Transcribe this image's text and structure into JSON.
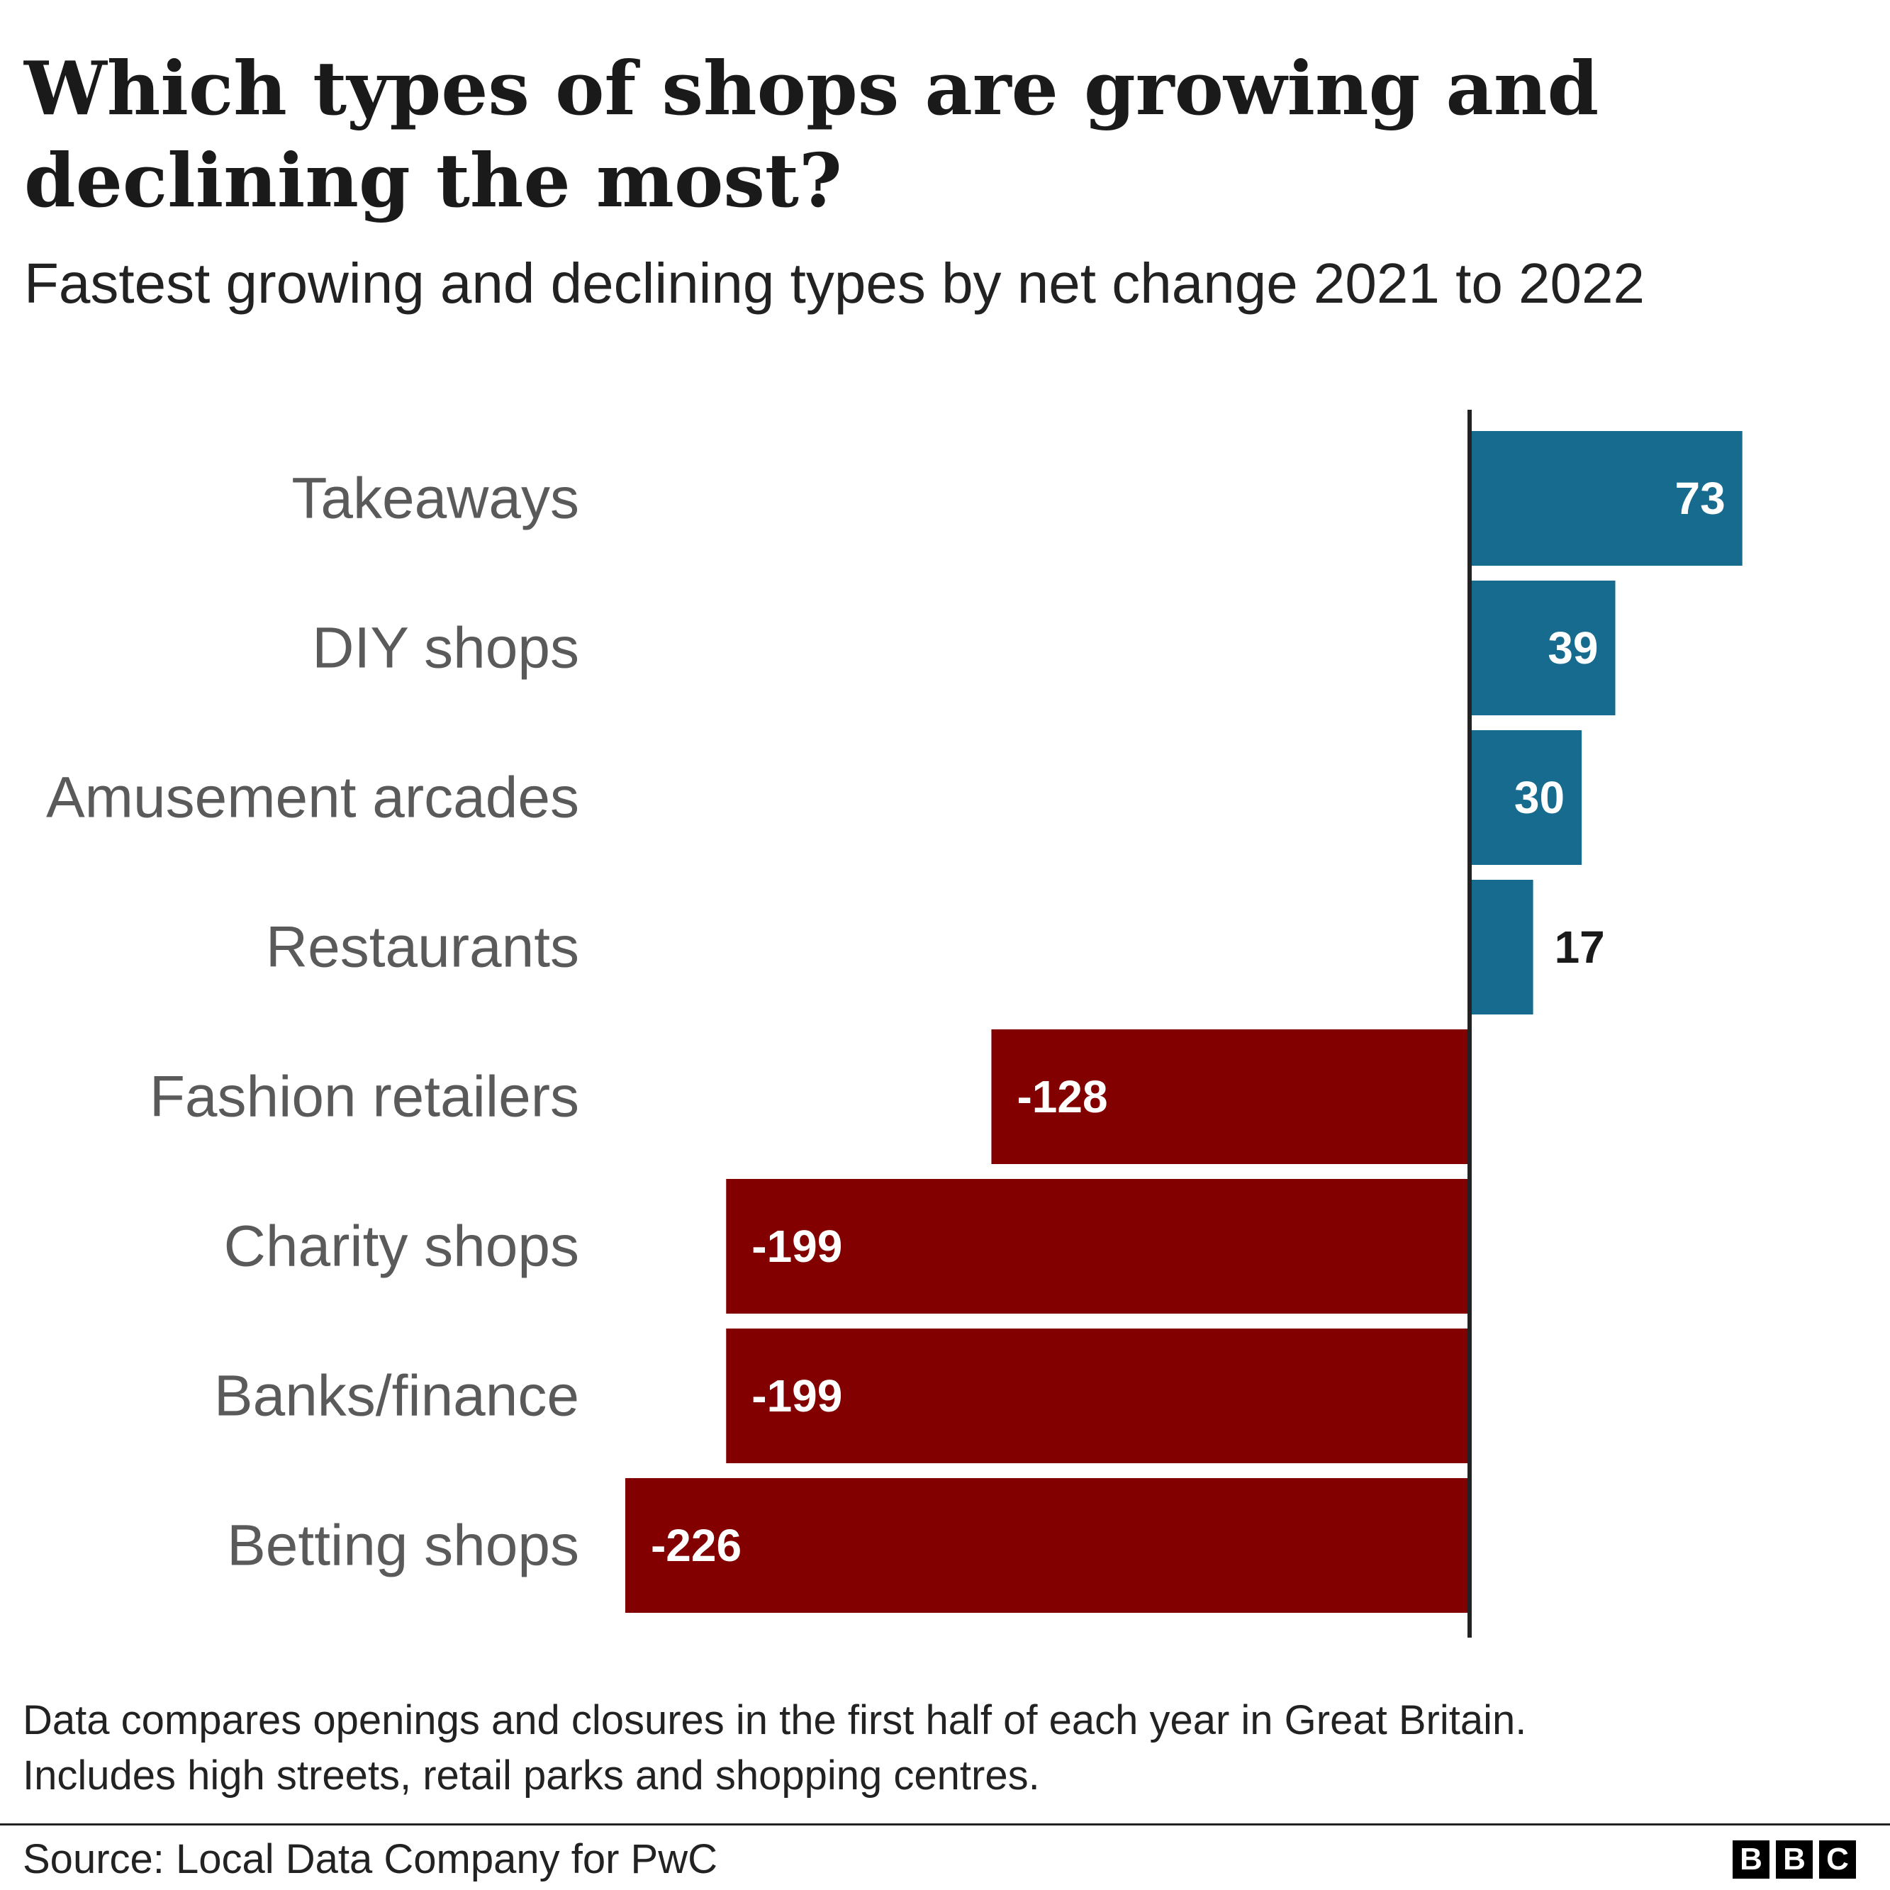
{
  "header": {
    "title": "Which types of shops are growing and declining the most?",
    "subtitle": "Fastest growing and declining types by net change 2021 to 2022"
  },
  "footer": {
    "note_line1": "Data compares openings and closures in the first half of each year in Great Britain.",
    "note_line2": "Includes high streets, retail parks and shopping centres.",
    "source": "Source: Local Data Company for PwC",
    "logo_letters": [
      "B",
      "B",
      "C"
    ]
  },
  "colors": {
    "positive": "#176b8f",
    "negative": "#820000",
    "axis": "#222222",
    "label_inside": "#ffffff",
    "label_outside": "#1a1a1a"
  },
  "chart_data": {
    "type": "bar",
    "orientation": "horizontal",
    "title": "Which types of shops are growing and declining the most?",
    "subtitle": "Fastest growing and declining types by net change 2021 to 2022",
    "categories": [
      "Takeaways",
      "DIY shops",
      "Amusement arcades",
      "Restaurants",
      "Fashion retailers",
      "Charity shops",
      "Banks/finance",
      "Betting shops"
    ],
    "values": [
      73,
      39,
      30,
      17,
      -128,
      -199,
      -199,
      -226
    ],
    "value_labels": [
      "73",
      "39",
      "30",
      "17",
      "-128",
      "-199",
      "-199",
      "-226"
    ],
    "xlim": [
      -226,
      73
    ],
    "xlabel": "",
    "ylabel": "",
    "grid": false,
    "legend": "none"
  }
}
